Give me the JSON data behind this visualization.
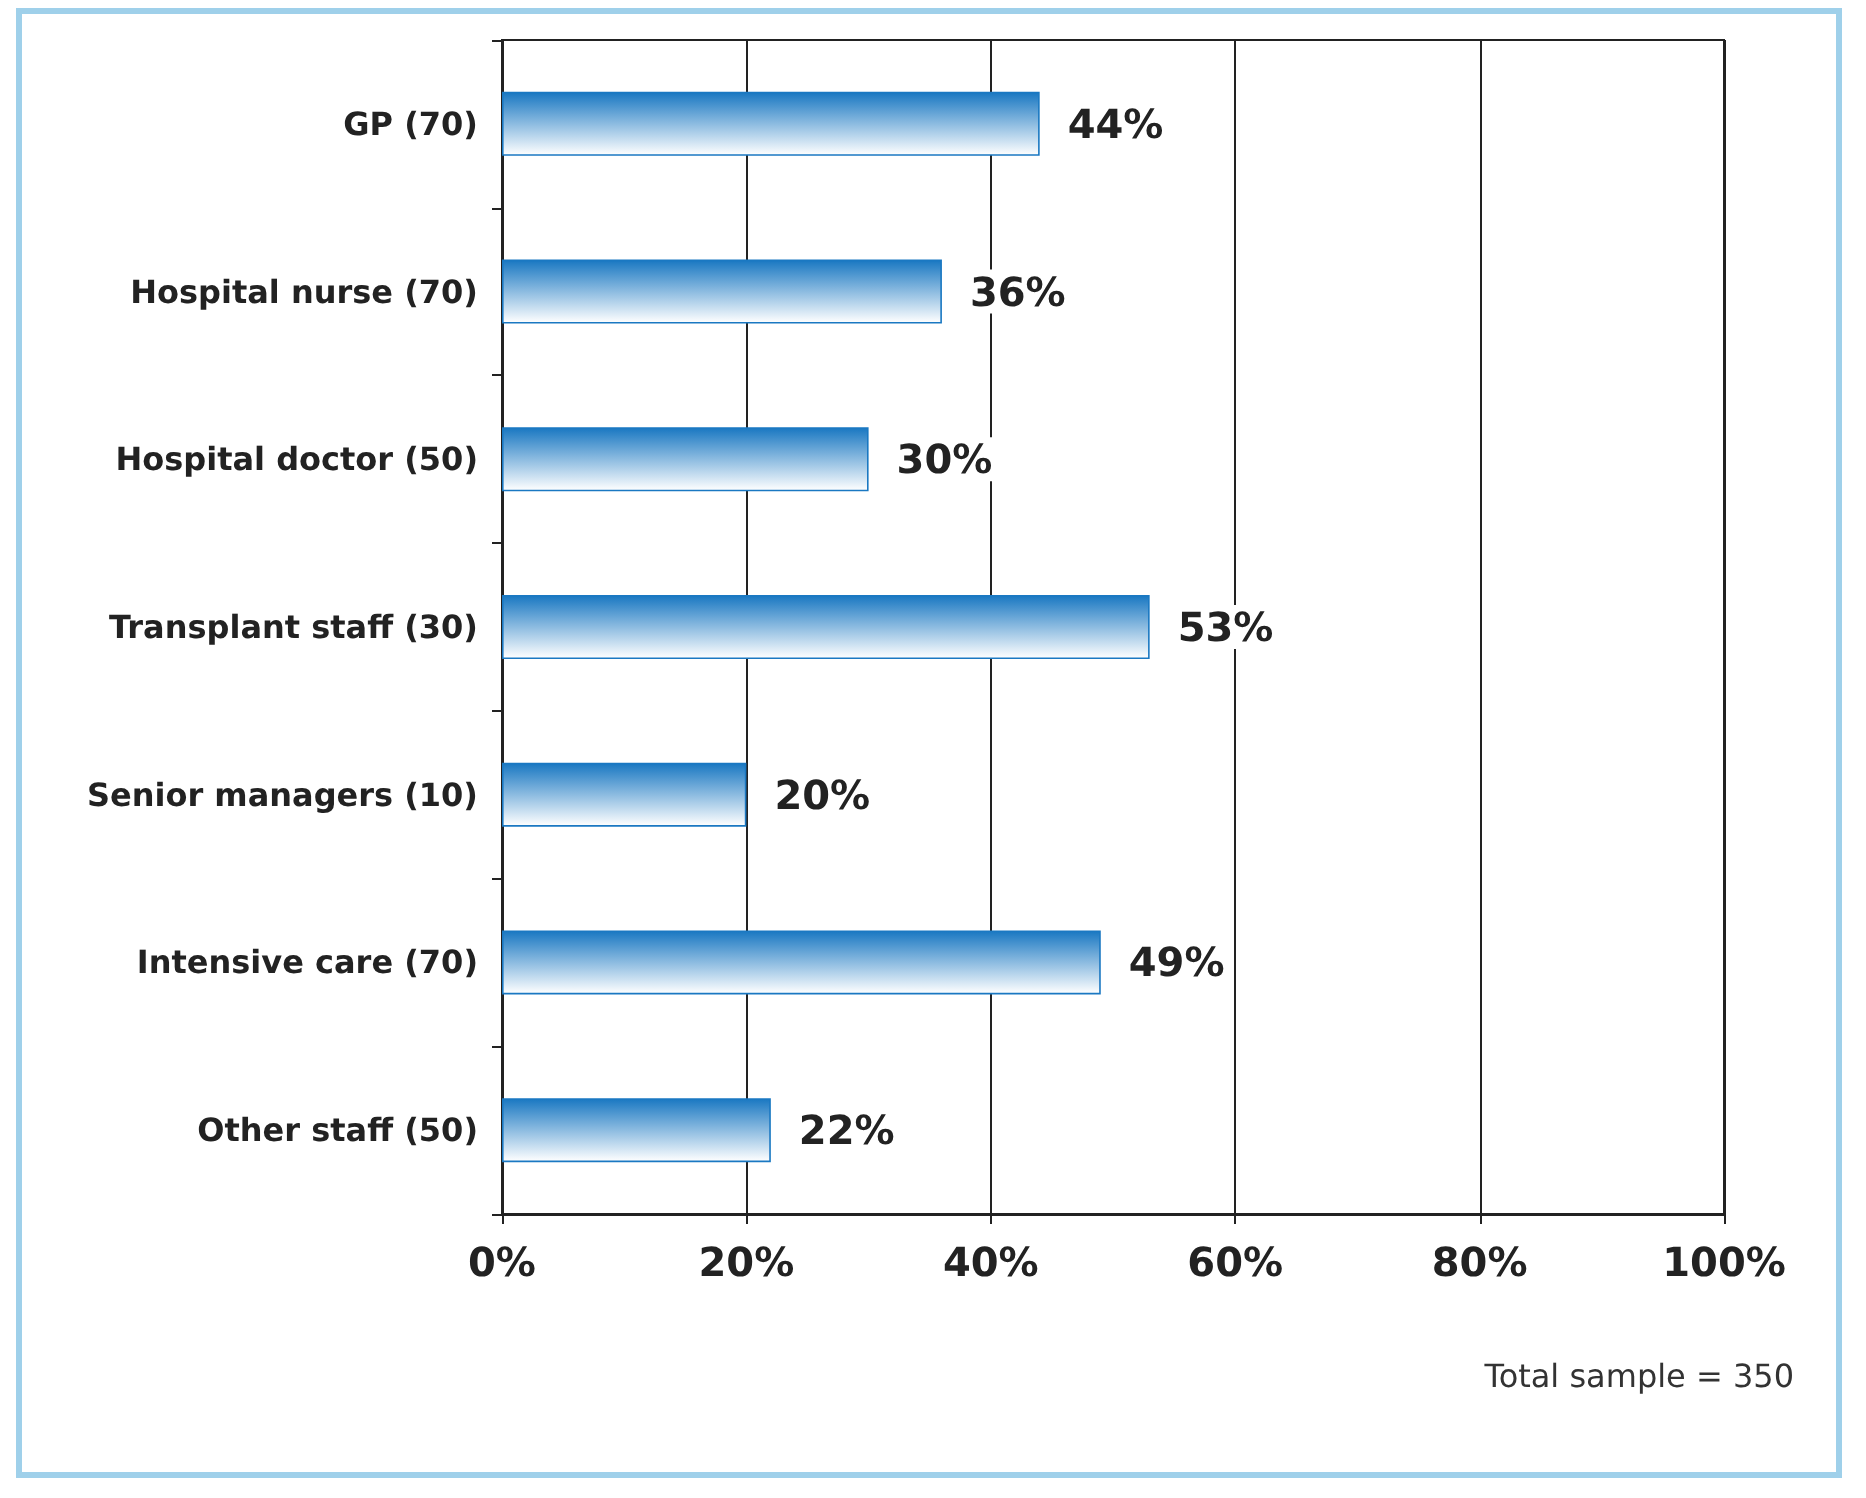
{
  "chart_data": {
    "type": "bar",
    "orientation": "horizontal",
    "categories": [
      "GP (70)",
      "Hospital nurse (70)",
      "Hospital doctor (50)",
      "Transplant staff (30)",
      "Senior managers (10)",
      "Intensive care (70)",
      "Other staff (50)"
    ],
    "values": [
      44,
      36,
      30,
      53,
      20,
      49,
      22
    ],
    "value_labels": [
      "44%",
      "36%",
      "30%",
      "53%",
      "20%",
      "49%",
      "22%"
    ],
    "color": "#1a78c2",
    "xlim": [
      0,
      100
    ],
    "xticks": [
      {
        "value": 0,
        "label": "0%"
      },
      {
        "value": 20,
        "label": "20%"
      },
      {
        "value": 40,
        "label": "40%"
      },
      {
        "value": 60,
        "label": "60%"
      },
      {
        "value": 80,
        "label": "80%"
      },
      {
        "value": 100,
        "label": "100%"
      }
    ],
    "grid": "x",
    "annotations": [
      "Total sample = 350"
    ]
  }
}
